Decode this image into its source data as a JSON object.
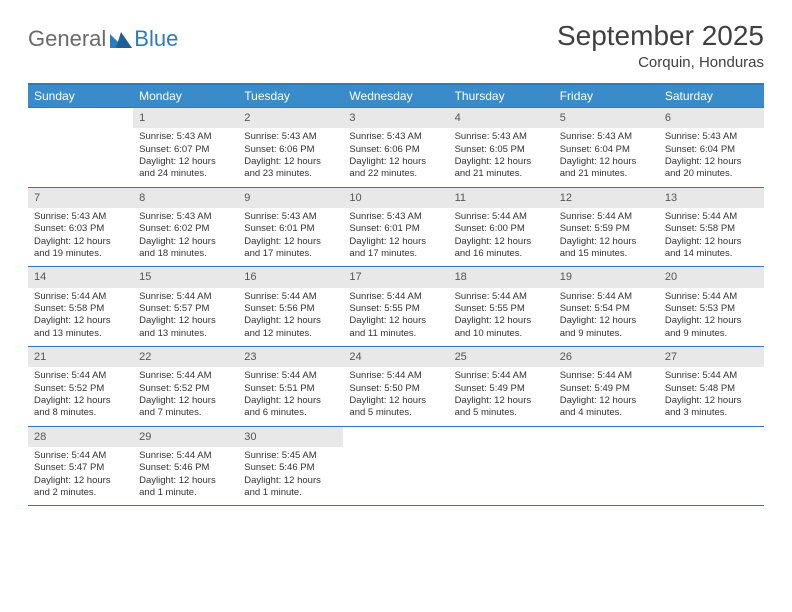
{
  "logo": {
    "text1": "General",
    "text2": "Blue"
  },
  "title": "September 2025",
  "location": "Corquin, Honduras",
  "colors": {
    "header_bg": "#3a8bc9",
    "border": "#2b7bbd",
    "daynum_bg": "#e8e8e8",
    "text": "#333333",
    "logo_gray": "#6a6a6a",
    "logo_blue": "#2b7bbd"
  },
  "dow": [
    "Sunday",
    "Monday",
    "Tuesday",
    "Wednesday",
    "Thursday",
    "Friday",
    "Saturday"
  ],
  "weeks": [
    [
      {
        "n": "",
        "sr": "",
        "ss": "",
        "dl": ""
      },
      {
        "n": "1",
        "sr": "Sunrise: 5:43 AM",
        "ss": "Sunset: 6:07 PM",
        "dl": "Daylight: 12 hours and 24 minutes."
      },
      {
        "n": "2",
        "sr": "Sunrise: 5:43 AM",
        "ss": "Sunset: 6:06 PM",
        "dl": "Daylight: 12 hours and 23 minutes."
      },
      {
        "n": "3",
        "sr": "Sunrise: 5:43 AM",
        "ss": "Sunset: 6:06 PM",
        "dl": "Daylight: 12 hours and 22 minutes."
      },
      {
        "n": "4",
        "sr": "Sunrise: 5:43 AM",
        "ss": "Sunset: 6:05 PM",
        "dl": "Daylight: 12 hours and 21 minutes."
      },
      {
        "n": "5",
        "sr": "Sunrise: 5:43 AM",
        "ss": "Sunset: 6:04 PM",
        "dl": "Daylight: 12 hours and 21 minutes."
      },
      {
        "n": "6",
        "sr": "Sunrise: 5:43 AM",
        "ss": "Sunset: 6:04 PM",
        "dl": "Daylight: 12 hours and 20 minutes."
      }
    ],
    [
      {
        "n": "7",
        "sr": "Sunrise: 5:43 AM",
        "ss": "Sunset: 6:03 PM",
        "dl": "Daylight: 12 hours and 19 minutes."
      },
      {
        "n": "8",
        "sr": "Sunrise: 5:43 AM",
        "ss": "Sunset: 6:02 PM",
        "dl": "Daylight: 12 hours and 18 minutes."
      },
      {
        "n": "9",
        "sr": "Sunrise: 5:43 AM",
        "ss": "Sunset: 6:01 PM",
        "dl": "Daylight: 12 hours and 17 minutes."
      },
      {
        "n": "10",
        "sr": "Sunrise: 5:43 AM",
        "ss": "Sunset: 6:01 PM",
        "dl": "Daylight: 12 hours and 17 minutes."
      },
      {
        "n": "11",
        "sr": "Sunrise: 5:44 AM",
        "ss": "Sunset: 6:00 PM",
        "dl": "Daylight: 12 hours and 16 minutes."
      },
      {
        "n": "12",
        "sr": "Sunrise: 5:44 AM",
        "ss": "Sunset: 5:59 PM",
        "dl": "Daylight: 12 hours and 15 minutes."
      },
      {
        "n": "13",
        "sr": "Sunrise: 5:44 AM",
        "ss": "Sunset: 5:58 PM",
        "dl": "Daylight: 12 hours and 14 minutes."
      }
    ],
    [
      {
        "n": "14",
        "sr": "Sunrise: 5:44 AM",
        "ss": "Sunset: 5:58 PM",
        "dl": "Daylight: 12 hours and 13 minutes."
      },
      {
        "n": "15",
        "sr": "Sunrise: 5:44 AM",
        "ss": "Sunset: 5:57 PM",
        "dl": "Daylight: 12 hours and 13 minutes."
      },
      {
        "n": "16",
        "sr": "Sunrise: 5:44 AM",
        "ss": "Sunset: 5:56 PM",
        "dl": "Daylight: 12 hours and 12 minutes."
      },
      {
        "n": "17",
        "sr": "Sunrise: 5:44 AM",
        "ss": "Sunset: 5:55 PM",
        "dl": "Daylight: 12 hours and 11 minutes."
      },
      {
        "n": "18",
        "sr": "Sunrise: 5:44 AM",
        "ss": "Sunset: 5:55 PM",
        "dl": "Daylight: 12 hours and 10 minutes."
      },
      {
        "n": "19",
        "sr": "Sunrise: 5:44 AM",
        "ss": "Sunset: 5:54 PM",
        "dl": "Daylight: 12 hours and 9 minutes."
      },
      {
        "n": "20",
        "sr": "Sunrise: 5:44 AM",
        "ss": "Sunset: 5:53 PM",
        "dl": "Daylight: 12 hours and 9 minutes."
      }
    ],
    [
      {
        "n": "21",
        "sr": "Sunrise: 5:44 AM",
        "ss": "Sunset: 5:52 PM",
        "dl": "Daylight: 12 hours and 8 minutes."
      },
      {
        "n": "22",
        "sr": "Sunrise: 5:44 AM",
        "ss": "Sunset: 5:52 PM",
        "dl": "Daylight: 12 hours and 7 minutes."
      },
      {
        "n": "23",
        "sr": "Sunrise: 5:44 AM",
        "ss": "Sunset: 5:51 PM",
        "dl": "Daylight: 12 hours and 6 minutes."
      },
      {
        "n": "24",
        "sr": "Sunrise: 5:44 AM",
        "ss": "Sunset: 5:50 PM",
        "dl": "Daylight: 12 hours and 5 minutes."
      },
      {
        "n": "25",
        "sr": "Sunrise: 5:44 AM",
        "ss": "Sunset: 5:49 PM",
        "dl": "Daylight: 12 hours and 5 minutes."
      },
      {
        "n": "26",
        "sr": "Sunrise: 5:44 AM",
        "ss": "Sunset: 5:49 PM",
        "dl": "Daylight: 12 hours and 4 minutes."
      },
      {
        "n": "27",
        "sr": "Sunrise: 5:44 AM",
        "ss": "Sunset: 5:48 PM",
        "dl": "Daylight: 12 hours and 3 minutes."
      }
    ],
    [
      {
        "n": "28",
        "sr": "Sunrise: 5:44 AM",
        "ss": "Sunset: 5:47 PM",
        "dl": "Daylight: 12 hours and 2 minutes."
      },
      {
        "n": "29",
        "sr": "Sunrise: 5:44 AM",
        "ss": "Sunset: 5:46 PM",
        "dl": "Daylight: 12 hours and 1 minute."
      },
      {
        "n": "30",
        "sr": "Sunrise: 5:45 AM",
        "ss": "Sunset: 5:46 PM",
        "dl": "Daylight: 12 hours and 1 minute."
      },
      {
        "n": "",
        "sr": "",
        "ss": "",
        "dl": ""
      },
      {
        "n": "",
        "sr": "",
        "ss": "",
        "dl": ""
      },
      {
        "n": "",
        "sr": "",
        "ss": "",
        "dl": ""
      },
      {
        "n": "",
        "sr": "",
        "ss": "",
        "dl": ""
      }
    ]
  ]
}
